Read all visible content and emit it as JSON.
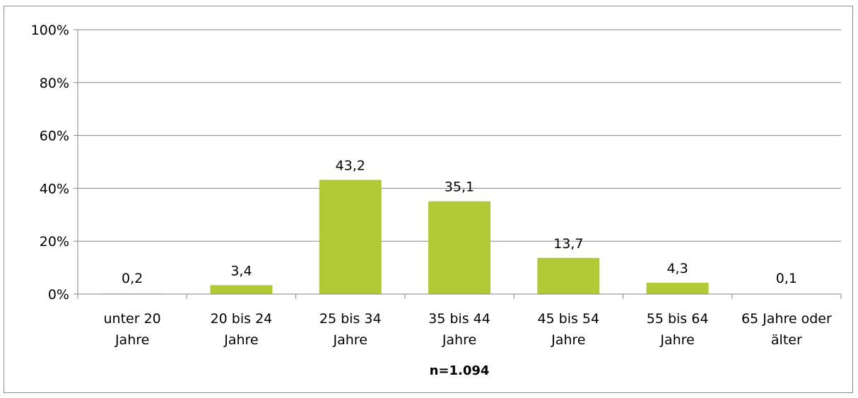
{
  "chart_data": {
    "type": "bar",
    "categories": [
      [
        "unter 20",
        "Jahre"
      ],
      [
        "20 bis 24",
        "Jahre"
      ],
      [
        "25 bis 34",
        "Jahre"
      ],
      [
        "35 bis 44",
        "Jahre"
      ],
      [
        "45 bis 54",
        "Jahre"
      ],
      [
        "55 bis 64",
        "Jahre"
      ],
      [
        "65 Jahre oder",
        "älter"
      ]
    ],
    "values": [
      0.2,
      3.4,
      43.2,
      35.1,
      13.7,
      4.3,
      0.1
    ],
    "data_labels": [
      "0,2",
      "3,4",
      "43,2",
      "35,1",
      "13,7",
      "4,3",
      "0,1"
    ],
    "yticks": [
      0,
      20,
      40,
      60,
      80,
      100
    ],
    "ytick_labels": [
      "0%",
      "20%",
      "40%",
      "60%",
      "80%",
      "100%"
    ],
    "ylim": [
      0,
      100
    ],
    "xlabel": "n=1.094",
    "ylabel": "",
    "title": "",
    "grid": true,
    "legend": "none",
    "bar_color": "#b0c934",
    "grid_color": "#868686"
  }
}
